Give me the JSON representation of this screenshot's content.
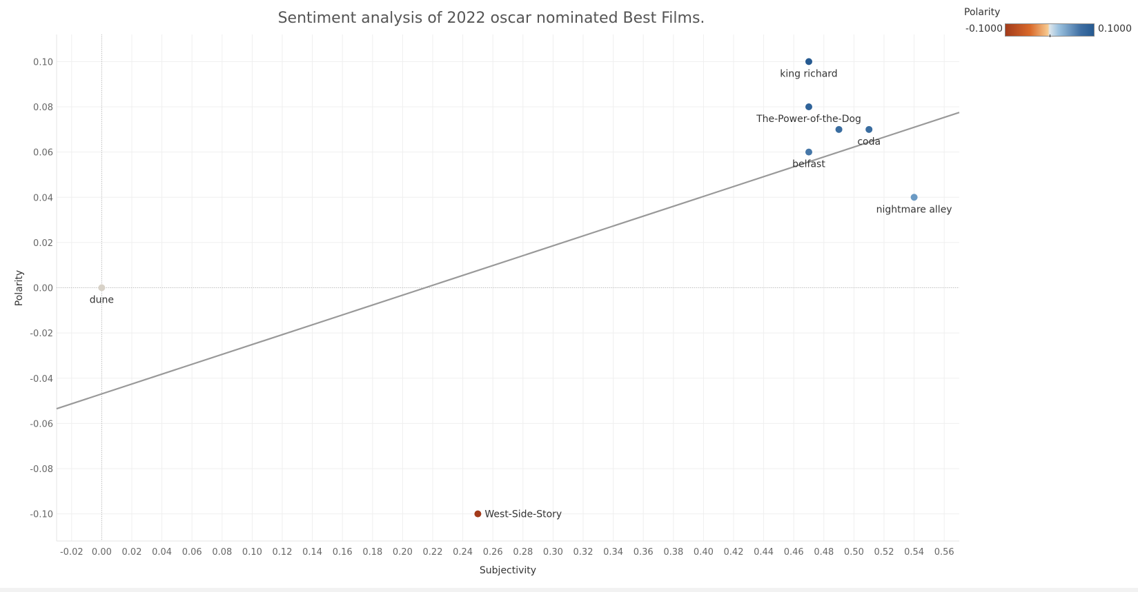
{
  "chart_data": {
    "type": "scatter",
    "title": "Sentiment analysis of 2022 oscar nominated Best Films.",
    "xlabel": "Subjectivity",
    "ylabel": "Polarity",
    "xlim": [
      -0.03,
      0.57
    ],
    "ylim": [
      -0.112,
      0.112
    ],
    "xticks": [
      "-0.02",
      "0.00",
      "0.02",
      "0.04",
      "0.06",
      "0.08",
      "0.10",
      "0.12",
      "0.14",
      "0.16",
      "0.18",
      "0.20",
      "0.22",
      "0.24",
      "0.26",
      "0.28",
      "0.30",
      "0.32",
      "0.34",
      "0.36",
      "0.38",
      "0.40",
      "0.42",
      "0.44",
      "0.46",
      "0.48",
      "0.50",
      "0.52",
      "0.54",
      "0.56"
    ],
    "yticks": [
      "0.10",
      "0.08",
      "0.06",
      "0.04",
      "0.02",
      "0.00",
      "-0.02",
      "-0.04",
      "-0.06",
      "-0.08",
      "-0.10"
    ],
    "grid": true,
    "points": [
      {
        "label": "king richard",
        "x": 0.47,
        "y": 0.1,
        "color": "#265a91",
        "label_pos": "below"
      },
      {
        "label": "The-Power-of-the-Dog",
        "x": 0.47,
        "y": 0.08,
        "color": "#2f6399",
        "label_pos": "below"
      },
      {
        "label": "",
        "x": 0.49,
        "y": 0.07,
        "color": "#3a6da0",
        "label_pos": "none"
      },
      {
        "label": "coda",
        "x": 0.51,
        "y": 0.07,
        "color": "#3a6da0",
        "label_pos": "below"
      },
      {
        "label": "belfast",
        "x": 0.47,
        "y": 0.06,
        "color": "#4677a8",
        "label_pos": "below"
      },
      {
        "label": "nightmare alley",
        "x": 0.54,
        "y": 0.04,
        "color": "#6b9ac4",
        "label_pos": "below"
      },
      {
        "label": "dune",
        "x": 0.0,
        "y": 0.0,
        "color": "#d8d2c8",
        "label_pos": "below"
      },
      {
        "label": "West-Side-Story",
        "x": 0.25,
        "y": -0.1,
        "color": "#a33b1b",
        "label_pos": "right"
      }
    ],
    "trend_line": {
      "x": [
        -0.03,
        0.57
      ],
      "y": [
        -0.0535,
        0.0775
      ],
      "color": "#999999"
    },
    "legend": {
      "title": "Polarity",
      "min_label": "-0.1000",
      "max_label": "0.1000",
      "placement": "top-right"
    }
  }
}
